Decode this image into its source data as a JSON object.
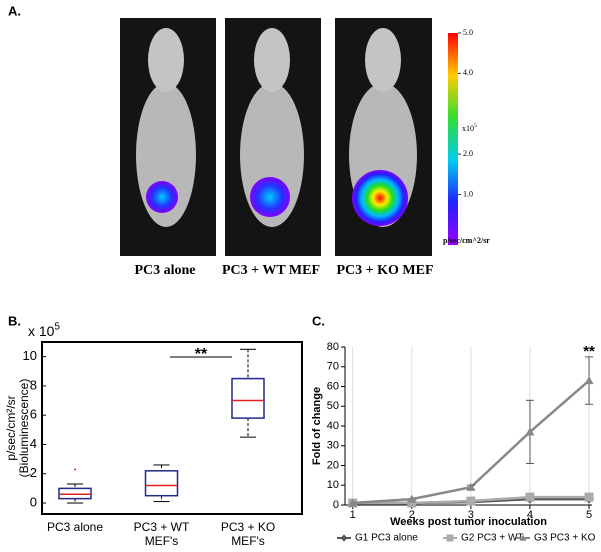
{
  "panel_a": {
    "label": "A.",
    "captions": [
      "PC3 alone",
      "PC3 + WT MEF",
      "PC3 + KO MEF"
    ],
    "colorbar": {
      "lim": [
        -0.25,
        5
      ],
      "ticks": [
        {
          "value": 5,
          "label": "5.0"
        },
        {
          "value": 4,
          "label": "4.0"
        },
        {
          "value": 2,
          "label": "2.0"
        },
        {
          "value": 1,
          "label": "1.0"
        }
      ],
      "multiplier": {
        "base": "x10",
        "exponent": "5"
      },
      "units": "p/sec/cm^2/sr"
    }
  },
  "chart_data": [
    {
      "type": "box",
      "label": "B.",
      "multiplier": {
        "base": "x 10",
        "exponent": "5"
      },
      "ylabel": [
        "p/sec/cm²/sr",
        "(Bioluminescence)"
      ],
      "categories": [
        "PC3 alone",
        "PC3 + WT MEF's",
        "PC3 + KO MEF's"
      ],
      "boxes": [
        {
          "whislo": 0,
          "q1": 0.3,
          "med": 0.6,
          "q3": 1.0,
          "whishi": 1.3,
          "fliers": [
            2.3
          ]
        },
        {
          "whislo": 0.1,
          "q1": 0.5,
          "med": 1.2,
          "q3": 2.2,
          "whishi": 2.6,
          "fliers": []
        },
        {
          "whislo": 4.5,
          "q1": 5.8,
          "med": 7.0,
          "q3": 8.5,
          "whishi": 10.5,
          "fliers": []
        }
      ],
      "box_color": "#1f2a8a",
      "median_color": "#e02020",
      "annotation": "**",
      "ylim": [
        -0.75,
        11
      ],
      "yticks": [
        0,
        2,
        4,
        6,
        8,
        10
      ]
    },
    {
      "type": "line",
      "label": "C.",
      "xlabel": "Weeks post tumor inoculation",
      "ylabel": "Fold of change",
      "x": [
        1,
        2,
        3,
        4,
        5
      ],
      "series": [
        {
          "name": "G1 PC3 alone",
          "color": "#555555",
          "marker": "diamond",
          "values": [
            1,
            1,
            1.5,
            3,
            3
          ]
        },
        {
          "name": "G2 PC3 + WT",
          "color": "#aaaaaa",
          "marker": "square",
          "values": [
            1,
            1,
            2,
            4,
            4
          ]
        },
        {
          "name": "G3 PC3 + KO",
          "color": "#888888",
          "marker": "triangle",
          "values": [
            1,
            3,
            9,
            37,
            63
          ],
          "errors": [
            null,
            null,
            1,
            16,
            12
          ]
        }
      ],
      "annotation": "**",
      "xlim": [
        0.87,
        5.05
      ],
      "xticks": [
        1,
        2,
        3,
        4,
        5
      ],
      "ylim": [
        0,
        80
      ],
      "yticks": [
        0,
        10,
        20,
        30,
        40,
        50,
        60,
        70,
        80
      ],
      "grid": "x",
      "legend": "bottom"
    }
  ]
}
